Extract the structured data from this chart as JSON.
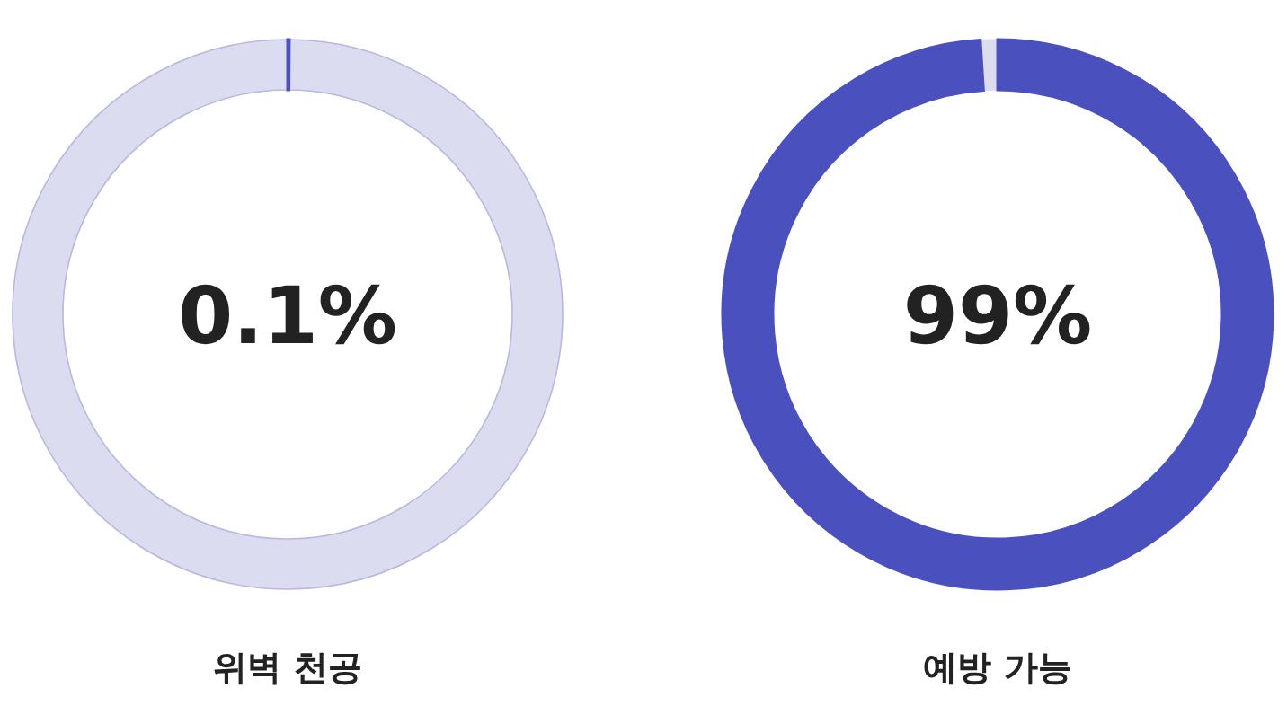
{
  "chart_data": [
    {
      "type": "donut",
      "title": "위벽 천공",
      "annotations": [
        "0.1%"
      ],
      "categories": [
        null,
        null
      ],
      "values": [
        0.1,
        99.9
      ],
      "colors": [
        "#4a50bd",
        "#dcdcf0"
      ]
    },
    {
      "type": "donut",
      "title": "예방 가능",
      "annotations": [
        "99%"
      ],
      "categories": [
        null,
        null
      ],
      "values": [
        99,
        1
      ],
      "colors": [
        "#4a50bd",
        "#dcdcf0"
      ]
    }
  ]
}
